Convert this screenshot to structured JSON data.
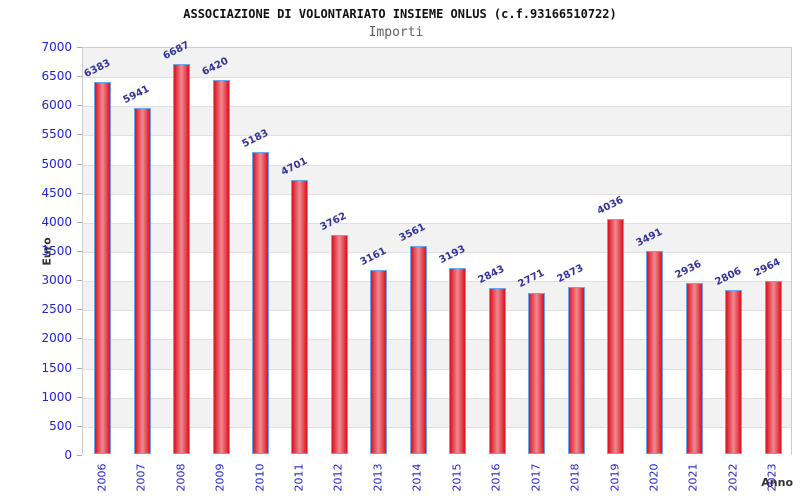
{
  "header": {
    "title": "ASSOCIAZIONE DI VOLONTARIATO INSIEME ONLUS (c.f.93166510722)",
    "subtitle": "Importi"
  },
  "chart_data": {
    "type": "bar",
    "title": "ASSOCIAZIONE DI VOLONTARIATO INSIEME ONLUS (c.f.93166510722)",
    "subtitle": "Importi",
    "xlabel": "Anno",
    "ylabel": "Euro",
    "categories": [
      "2006",
      "2007",
      "2008",
      "2009",
      "2010",
      "2011",
      "2012",
      "2013",
      "2014",
      "2015",
      "2016",
      "2017",
      "2018",
      "2019",
      "2020",
      "2021",
      "2022",
      "2023"
    ],
    "values": [
      6383,
      5941,
      6687,
      6420,
      5183,
      4701,
      3762,
      3161,
      3561,
      3193,
      2843,
      2771,
      2873,
      4036,
      3491,
      2936,
      2806,
      2964
    ],
    "value_labels": [
      "6383",
      "5941",
      "6687",
      "6420",
      "5183",
      "4701",
      "3762",
      "3161",
      "3561",
      "3193",
      "2843",
      "2771",
      "2873",
      "4036",
      "3491",
      "2936",
      "2806",
      "2964"
    ],
    "ylim": [
      0,
      7000
    ],
    "ytick_interval": 500,
    "yticks": [
      "0",
      "500",
      "1000",
      "1500",
      "2000",
      "2500",
      "3000",
      "3500",
      "4000",
      "4500",
      "5000",
      "5500",
      "6000",
      "6500",
      "7000"
    ],
    "legend": "none",
    "grid": "horizontal-bands",
    "colors": {
      "bar_edge": "#dc1120",
      "bar_center": "#ef8a92",
      "bar_border": "#6aa5ee",
      "axis_tick_label": "#2323cd",
      "value_label": "#33339b",
      "axis_title": "#333333",
      "band_gray": "#f2f2f2",
      "band_white": "#ffffff",
      "grid_line": "#e0e0e0",
      "plot_border": "#cccccc",
      "title_color": "#111111",
      "subtitle_color": "#606060"
    }
  }
}
